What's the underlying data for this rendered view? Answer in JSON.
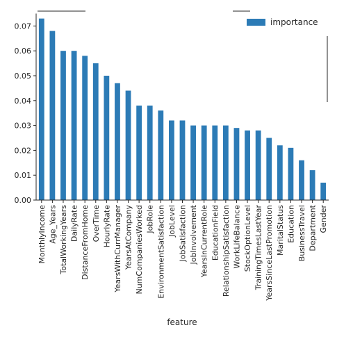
{
  "chart_data": {
    "type": "bar",
    "xlabel": "feature",
    "ylabel": "",
    "ylim": [
      0,
      0.075
    ],
    "yticks": [
      0.0,
      0.01,
      0.02,
      0.03,
      0.04,
      0.05,
      0.06,
      0.07
    ],
    "ytick_labels": [
      "0.00",
      "0.01",
      "0.02",
      "0.03",
      "0.04",
      "0.05",
      "0.06",
      "0.07"
    ],
    "legend_position": "top-right",
    "grid": false,
    "bar_color": "#2c7bb6",
    "categories": [
      "MonthlyIncome",
      "Age_Years",
      "TotalWorkingYears",
      "DailyRate",
      "DistanceFromHome",
      "OverTime",
      "HourlyRate",
      "YearsWithCurrManager",
      "YearsAtCompany",
      "NumCompaniesWorked",
      "JobRole",
      "EnvironmentSatisfaction",
      "JobLevel",
      "JobSatisfaction",
      "JobInvolvement",
      "YearsInCurrentRole",
      "EducationField",
      "RelationshipSatisfaction",
      "WorkLifeBalance",
      "StockOptionLevel",
      "TrainingTimesLastYear",
      "YearsSinceLastPromotion",
      "MaritalStatus",
      "Education",
      "BusinessTravel",
      "Department",
      "Gender"
    ],
    "series": [
      {
        "name": "importance",
        "values": [
          0.073,
          0.068,
          0.06,
          0.06,
          0.058,
          0.055,
          0.05,
          0.047,
          0.044,
          0.038,
          0.038,
          0.036,
          0.032,
          0.032,
          0.03,
          0.03,
          0.03,
          0.03,
          0.029,
          0.028,
          0.028,
          0.025,
          0.022,
          0.021,
          0.016,
          0.012,
          0.007
        ]
      }
    ]
  }
}
